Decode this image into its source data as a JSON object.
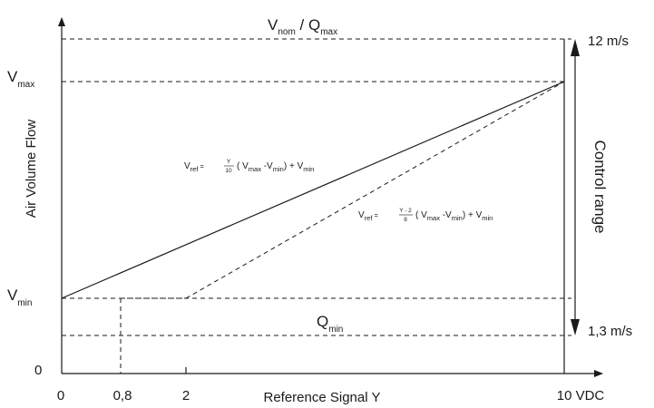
{
  "diagram": {
    "top_label_v": "V",
    "top_label_v_sub": "nom",
    "top_label_sep": " / Q",
    "top_label_q_sub": "max",
    "vmax_main": "V",
    "vmax_sub": "max",
    "vmin_main": "V",
    "vmin_sub": "min",
    "qmin_main": "Q",
    "qmin_sub": "min",
    "origin_y": "0",
    "y_axis_label": "Air Volume Flow",
    "x_axis_label": "Reference Signal Y",
    "x_ticks": [
      "0",
      "0,8",
      "2",
      "10 VDC"
    ],
    "right_top": "12 m/s",
    "right_bottom": "1,3 m/s",
    "control_range": "Control range",
    "formula1": {
      "v": "V",
      "ref": "ref",
      "eq": " = ",
      "num": "Y",
      "den": "10",
      "open": "( V",
      "max": "max",
      "minus": " -V",
      "min": "min",
      "close": ")",
      "plus": " + V",
      "min2": "min"
    },
    "formula2": {
      "v": "V",
      "ref": "ref",
      "eq": " = ",
      "num": "Y - 2",
      "den": "8",
      "open": "( V",
      "max": "max",
      "minus": " -V",
      "min": "min",
      "close": ")",
      "plus": " + V",
      "min2": "min"
    }
  }
}
